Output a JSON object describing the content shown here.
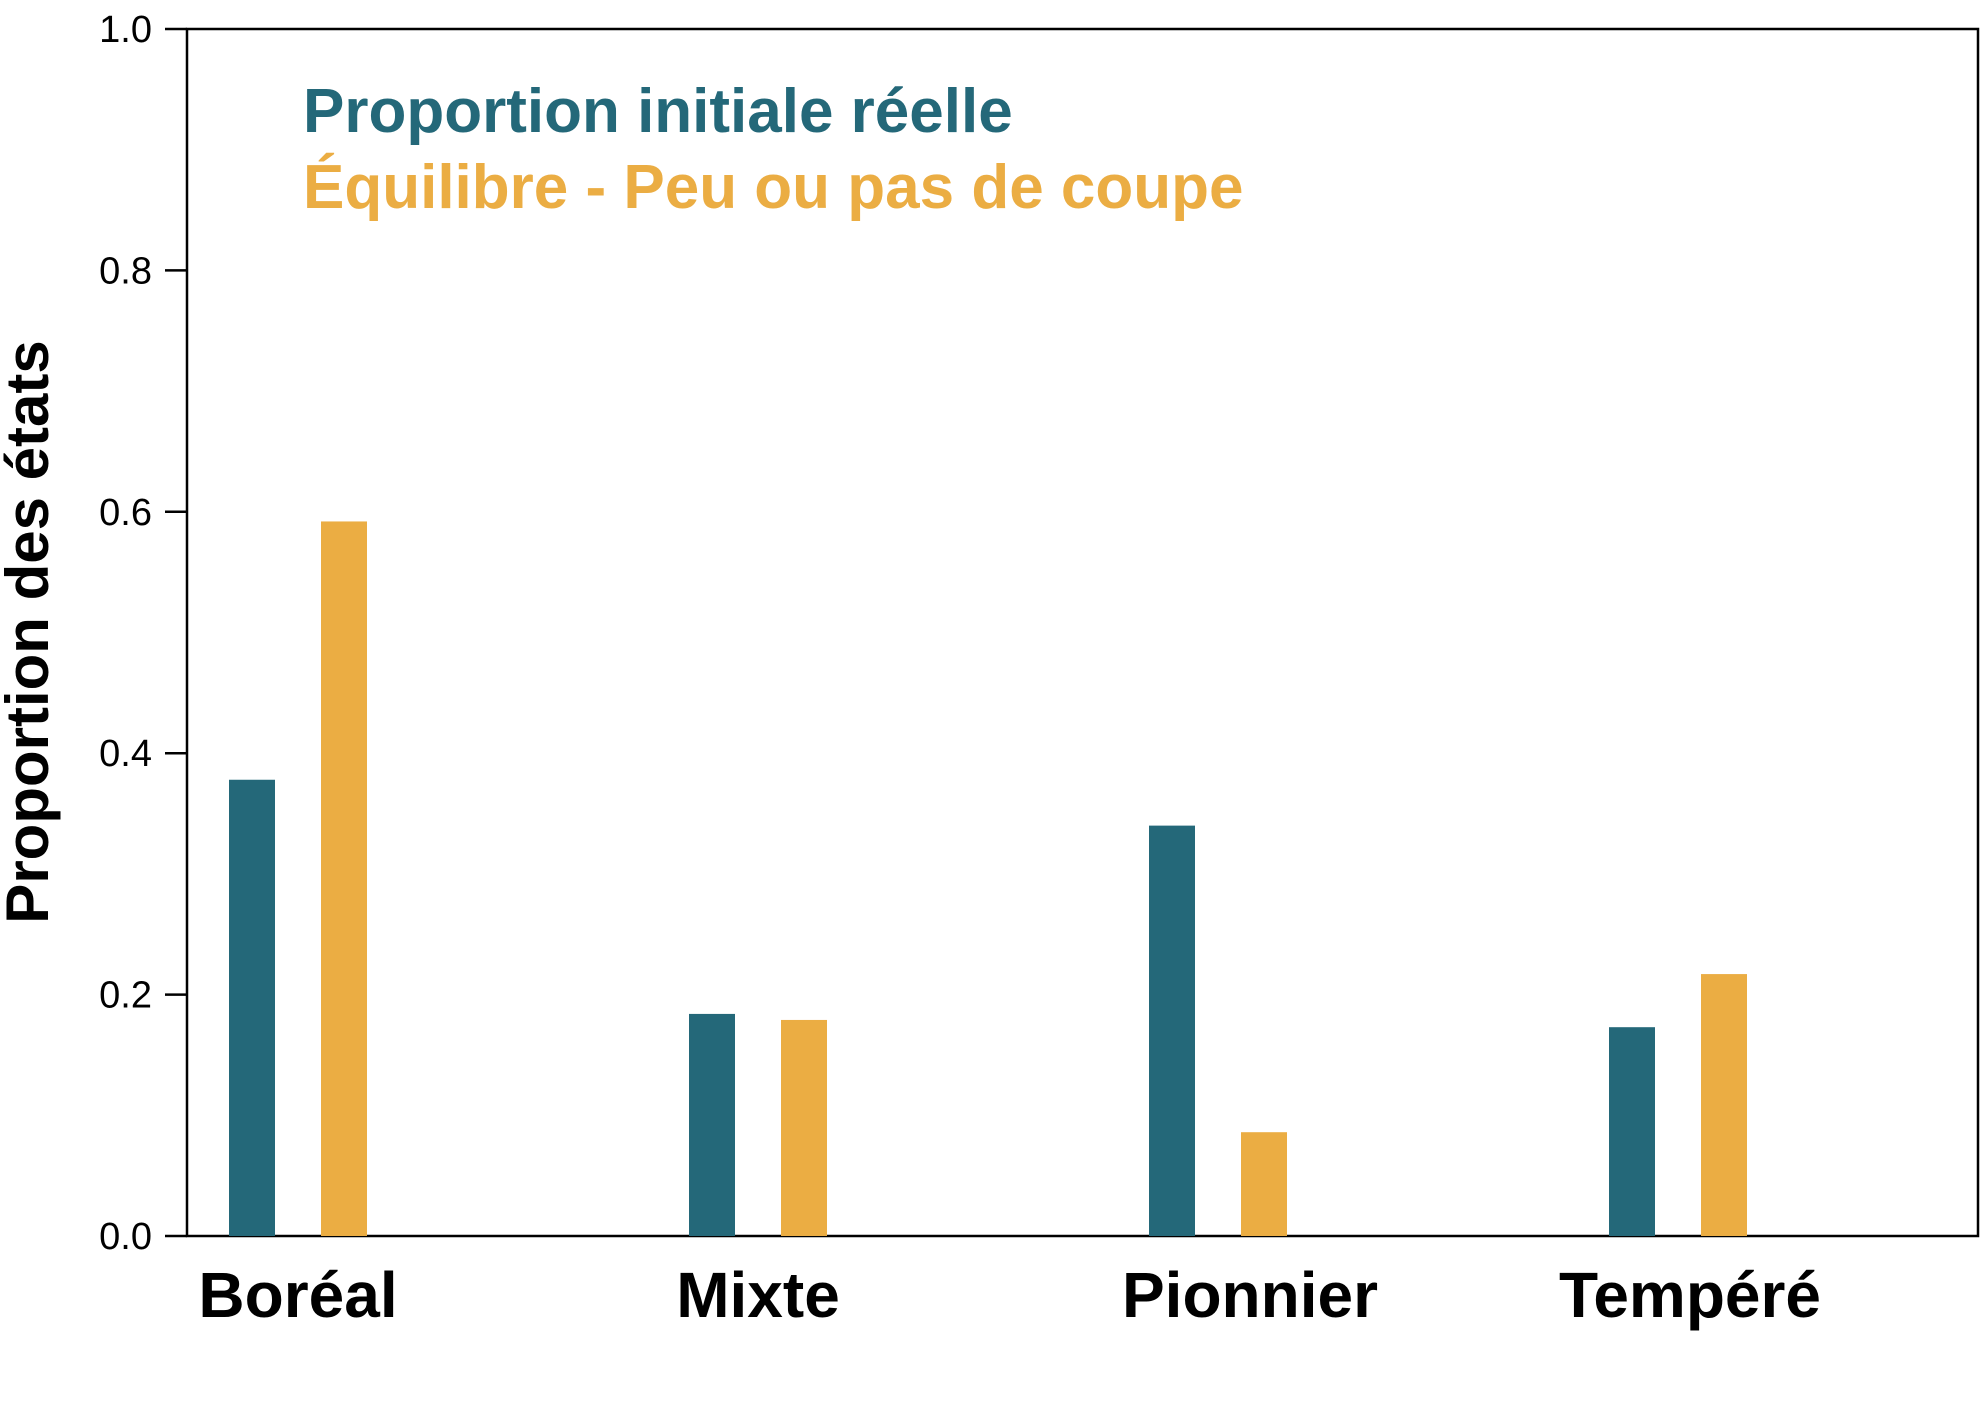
{
  "chart_data": {
    "type": "bar",
    "title": "",
    "xlabel": "",
    "ylabel": "Proportion des états",
    "ylim": [
      0,
      1
    ],
    "yticks": [
      "0.0",
      "0.2",
      "0.4",
      "0.6",
      "0.8",
      "1.0"
    ],
    "categories": [
      "Boréal",
      "Mixte",
      "Pionnier",
      "Tempéré"
    ],
    "series": [
      {
        "name": "Proportion initiale réelle",
        "color": "#246879",
        "values": [
          0.378,
          0.184,
          0.34,
          0.173
        ]
      },
      {
        "name": "Équilibre - Peu ou pas de coupe",
        "color": "#EBAD43",
        "values": [
          0.592,
          0.179,
          0.086,
          0.217
        ]
      }
    ],
    "grid": false,
    "legend_placement": "top-left"
  }
}
